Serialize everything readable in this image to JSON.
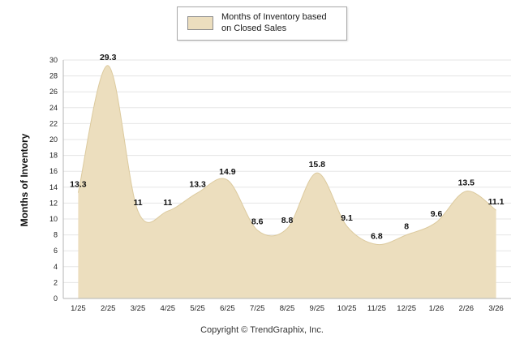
{
  "legend": {
    "label": "Months of Inventory based on Closed Sales"
  },
  "footer": {
    "copyright": "Copyright © TrendGraphix, Inc."
  },
  "colors": {
    "area_fill": "#ECDEBE",
    "area_stroke": "#DCCA9E",
    "grid": "#E5E5E5",
    "axis": "#B5B5B5",
    "tick_text": "#222222",
    "value_text": "#111111"
  },
  "chart_data": {
    "type": "area",
    "series_name": "Months of Inventory based on Closed Sales",
    "categories": [
      "1/25",
      "2/25",
      "3/25",
      "4/25",
      "5/25",
      "6/25",
      "7/25",
      "8/25",
      "9/25",
      "10/25",
      "11/25",
      "12/25",
      "1/26",
      "2/26",
      "3/26"
    ],
    "values": [
      13.3,
      29.3,
      11,
      11,
      13.3,
      14.9,
      8.6,
      8.8,
      15.8,
      9.1,
      6.8,
      8,
      9.6,
      13.5,
      11.1
    ],
    "title": "",
    "xlabel": "",
    "ylabel": "Months of Inventory",
    "ylim": [
      0,
      30
    ],
    "ytick_step": 2,
    "grid": true,
    "legend_position": "top"
  }
}
